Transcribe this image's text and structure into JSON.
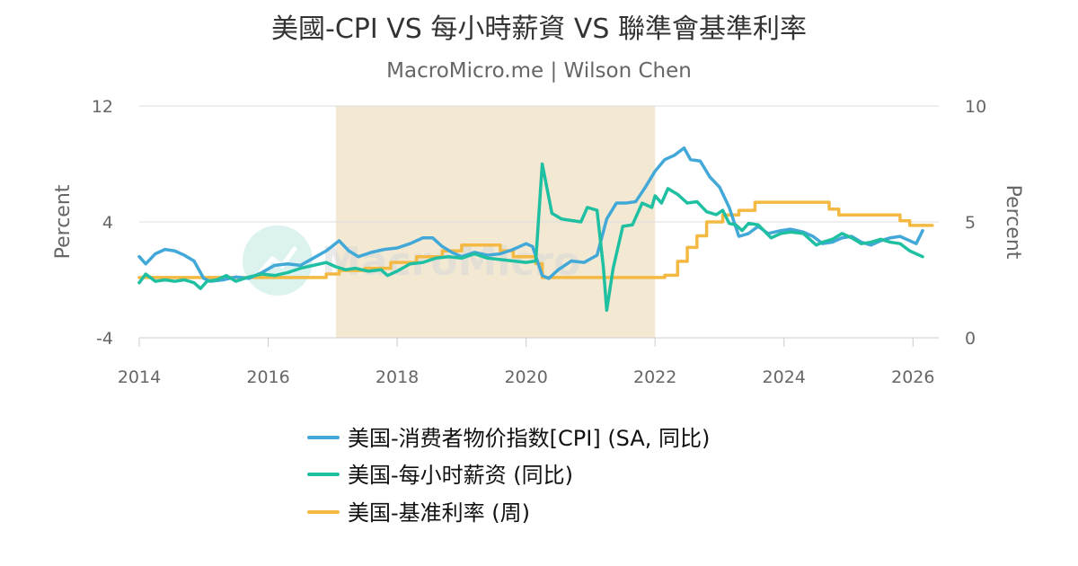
{
  "chart_data": {
    "type": "line",
    "title": "美國-CPI VS 每小時薪資 VS 聯準會基準利率",
    "subtitle": "MacroMicro.me | Wilson Chen",
    "watermark": "MacroMicro",
    "x_ticks": [
      "2014",
      "2016",
      "2018",
      "2020",
      "2022",
      "2024",
      "2026"
    ],
    "xlim": [
      2014,
      2026.4
    ],
    "y_left": {
      "label": "Percent",
      "lim": [
        -4,
        12
      ],
      "ticks": [
        "12",
        "4",
        "-4"
      ]
    },
    "y_right": {
      "label": "Percent",
      "lim": [
        0,
        10
      ],
      "ticks": [
        "10",
        "5",
        "0"
      ]
    },
    "shaded_region": {
      "x": [
        2017.05,
        2022.0
      ],
      "color": "#f3e8d2"
    },
    "grid": true,
    "legend_position": "bottom",
    "colors": {
      "cpi": "#42a8d8",
      "wages": "#1fbfa2",
      "rate": "#f4b942",
      "shade": "#f3e8d2",
      "grid": "#dddddd"
    },
    "series": [
      {
        "name": "美国-消费者物价指数[CPI] (SA, 同比)",
        "axis": "left",
        "color": "#42a8d8",
        "points": [
          [
            2014.0,
            1.6
          ],
          [
            2014.1,
            1.1
          ],
          [
            2014.25,
            1.8
          ],
          [
            2014.4,
            2.1
          ],
          [
            2014.55,
            2.0
          ],
          [
            2014.7,
            1.7
          ],
          [
            2014.85,
            1.3
          ],
          [
            2015.0,
            0.1
          ],
          [
            2015.1,
            -0.1
          ],
          [
            2015.3,
            0.0
          ],
          [
            2015.5,
            0.2
          ],
          [
            2015.7,
            0.1
          ],
          [
            2015.9,
            0.5
          ],
          [
            2016.1,
            1.0
          ],
          [
            2016.3,
            1.1
          ],
          [
            2016.5,
            1.0
          ],
          [
            2016.7,
            1.5
          ],
          [
            2016.9,
            2.0
          ],
          [
            2017.1,
            2.7
          ],
          [
            2017.25,
            2.0
          ],
          [
            2017.4,
            1.6
          ],
          [
            2017.6,
            1.9
          ],
          [
            2017.8,
            2.1
          ],
          [
            2018.0,
            2.2
          ],
          [
            2018.2,
            2.5
          ],
          [
            2018.4,
            2.9
          ],
          [
            2018.55,
            2.9
          ],
          [
            2018.7,
            2.3
          ],
          [
            2018.85,
            1.9
          ],
          [
            2019.0,
            1.6
          ],
          [
            2019.2,
            1.9
          ],
          [
            2019.4,
            1.7
          ],
          [
            2019.6,
            1.8
          ],
          [
            2019.8,
            2.1
          ],
          [
            2020.0,
            2.5
          ],
          [
            2020.1,
            2.3
          ],
          [
            2020.25,
            0.3
          ],
          [
            2020.35,
            0.1
          ],
          [
            2020.5,
            0.7
          ],
          [
            2020.7,
            1.3
          ],
          [
            2020.9,
            1.2
          ],
          [
            2021.1,
            1.7
          ],
          [
            2021.25,
            4.2
          ],
          [
            2021.4,
            5.3
          ],
          [
            2021.55,
            5.3
          ],
          [
            2021.7,
            5.4
          ],
          [
            2021.85,
            6.4
          ],
          [
            2022.0,
            7.5
          ],
          [
            2022.15,
            8.3
          ],
          [
            2022.3,
            8.6
          ],
          [
            2022.45,
            9.1
          ],
          [
            2022.55,
            8.3
          ],
          [
            2022.7,
            8.2
          ],
          [
            2022.85,
            7.1
          ],
          [
            2023.0,
            6.4
          ],
          [
            2023.15,
            5.0
          ],
          [
            2023.3,
            3.0
          ],
          [
            2023.45,
            3.2
          ],
          [
            2023.6,
            3.7
          ],
          [
            2023.75,
            3.2
          ],
          [
            2023.95,
            3.4
          ],
          [
            2024.1,
            3.5
          ],
          [
            2024.3,
            3.3
          ],
          [
            2024.45,
            3.0
          ],
          [
            2024.6,
            2.5
          ],
          [
            2024.75,
            2.6
          ],
          [
            2024.9,
            2.9
          ],
          [
            2025.05,
            3.0
          ],
          [
            2025.2,
            2.6
          ],
          [
            2025.35,
            2.4
          ],
          [
            2025.5,
            2.7
          ],
          [
            2025.65,
            2.9
          ],
          [
            2025.8,
            3.0
          ],
          [
            2025.95,
            2.7
          ],
          [
            2026.05,
            2.5
          ],
          [
            2026.15,
            3.4
          ]
        ]
      },
      {
        "name": "美国-每小时薪资 (同比)",
        "axis": "left",
        "color": "#1fbfa2",
        "points": [
          [
            2014.0,
            -0.2
          ],
          [
            2014.1,
            0.4
          ],
          [
            2014.25,
            -0.1
          ],
          [
            2014.4,
            0.0
          ],
          [
            2014.55,
            -0.1
          ],
          [
            2014.7,
            0.0
          ],
          [
            2014.85,
            -0.2
          ],
          [
            2014.95,
            -0.6
          ],
          [
            2015.05,
            -0.1
          ],
          [
            2015.2,
            0.0
          ],
          [
            2015.35,
            0.3
          ],
          [
            2015.5,
            -0.1
          ],
          [
            2015.7,
            0.2
          ],
          [
            2015.9,
            0.4
          ],
          [
            2016.1,
            0.3
          ],
          [
            2016.3,
            0.5
          ],
          [
            2016.5,
            0.8
          ],
          [
            2016.7,
            1.0
          ],
          [
            2016.9,
            1.2
          ],
          [
            2017.05,
            0.9
          ],
          [
            2017.2,
            0.7
          ],
          [
            2017.35,
            0.8
          ],
          [
            2017.55,
            0.6
          ],
          [
            2017.75,
            0.7
          ],
          [
            2017.85,
            0.3
          ],
          [
            2018.0,
            0.6
          ],
          [
            2018.2,
            1.1
          ],
          [
            2018.4,
            1.2
          ],
          [
            2018.6,
            1.5
          ],
          [
            2018.8,
            1.6
          ],
          [
            2019.0,
            1.5
          ],
          [
            2019.2,
            1.8
          ],
          [
            2019.4,
            1.5
          ],
          [
            2019.6,
            1.4
          ],
          [
            2019.8,
            1.3
          ],
          [
            2020.0,
            1.2
          ],
          [
            2020.15,
            1.3
          ],
          [
            2020.25,
            8.0
          ],
          [
            2020.4,
            4.6
          ],
          [
            2020.55,
            4.2
          ],
          [
            2020.7,
            4.1
          ],
          [
            2020.85,
            4.0
          ],
          [
            2020.95,
            5.0
          ],
          [
            2021.1,
            4.8
          ],
          [
            2021.2,
            0.8
          ],
          [
            2021.25,
            -2.1
          ],
          [
            2021.35,
            0.8
          ],
          [
            2021.5,
            3.7
          ],
          [
            2021.65,
            3.8
          ],
          [
            2021.8,
            5.3
          ],
          [
            2021.95,
            5.0
          ],
          [
            2022.0,
            5.8
          ],
          [
            2022.1,
            5.3
          ],
          [
            2022.2,
            6.3
          ],
          [
            2022.35,
            5.9
          ],
          [
            2022.5,
            5.3
          ],
          [
            2022.65,
            5.4
          ],
          [
            2022.8,
            4.7
          ],
          [
            2022.95,
            4.5
          ],
          [
            2023.05,
            4.8
          ],
          [
            2023.15,
            3.9
          ],
          [
            2023.25,
            3.8
          ],
          [
            2023.35,
            3.4
          ],
          [
            2023.45,
            3.9
          ],
          [
            2023.6,
            3.8
          ],
          [
            2023.8,
            2.9
          ],
          [
            2023.95,
            3.2
          ],
          [
            2024.1,
            3.3
          ],
          [
            2024.3,
            3.2
          ],
          [
            2024.5,
            2.4
          ],
          [
            2024.6,
            2.6
          ],
          [
            2024.75,
            2.8
          ],
          [
            2024.9,
            3.2
          ],
          [
            2025.05,
            2.9
          ],
          [
            2025.2,
            2.5
          ],
          [
            2025.35,
            2.6
          ],
          [
            2025.5,
            2.8
          ],
          [
            2025.65,
            2.6
          ],
          [
            2025.8,
            2.5
          ],
          [
            2025.95,
            2.0
          ],
          [
            2026.05,
            1.8
          ],
          [
            2026.15,
            1.6
          ]
        ]
      },
      {
        "name": "美国-基准利率 (周)",
        "axis": "right",
        "color": "#f4b942",
        "points": [
          [
            2014.0,
            2.6
          ],
          [
            2016.9,
            2.75
          ],
          [
            2017.1,
            2.9
          ],
          [
            2017.5,
            3.0
          ],
          [
            2017.9,
            3.25
          ],
          [
            2018.3,
            3.5
          ],
          [
            2018.7,
            3.75
          ],
          [
            2019.0,
            4.0
          ],
          [
            2019.6,
            3.75
          ],
          [
            2019.8,
            3.5
          ],
          [
            2020.15,
            3.2
          ],
          [
            2020.25,
            2.6
          ],
          [
            2022.15,
            2.7
          ],
          [
            2022.35,
            3.3
          ],
          [
            2022.5,
            3.9
          ],
          [
            2022.65,
            4.4
          ],
          [
            2022.8,
            5.0
          ],
          [
            2023.05,
            5.3
          ],
          [
            2023.3,
            5.5
          ],
          [
            2023.55,
            5.85
          ],
          [
            2024.7,
            5.55
          ],
          [
            2024.85,
            5.3
          ],
          [
            2025.8,
            5.05
          ],
          [
            2025.95,
            4.85
          ],
          [
            2026.3,
            4.85
          ]
        ]
      }
    ]
  }
}
